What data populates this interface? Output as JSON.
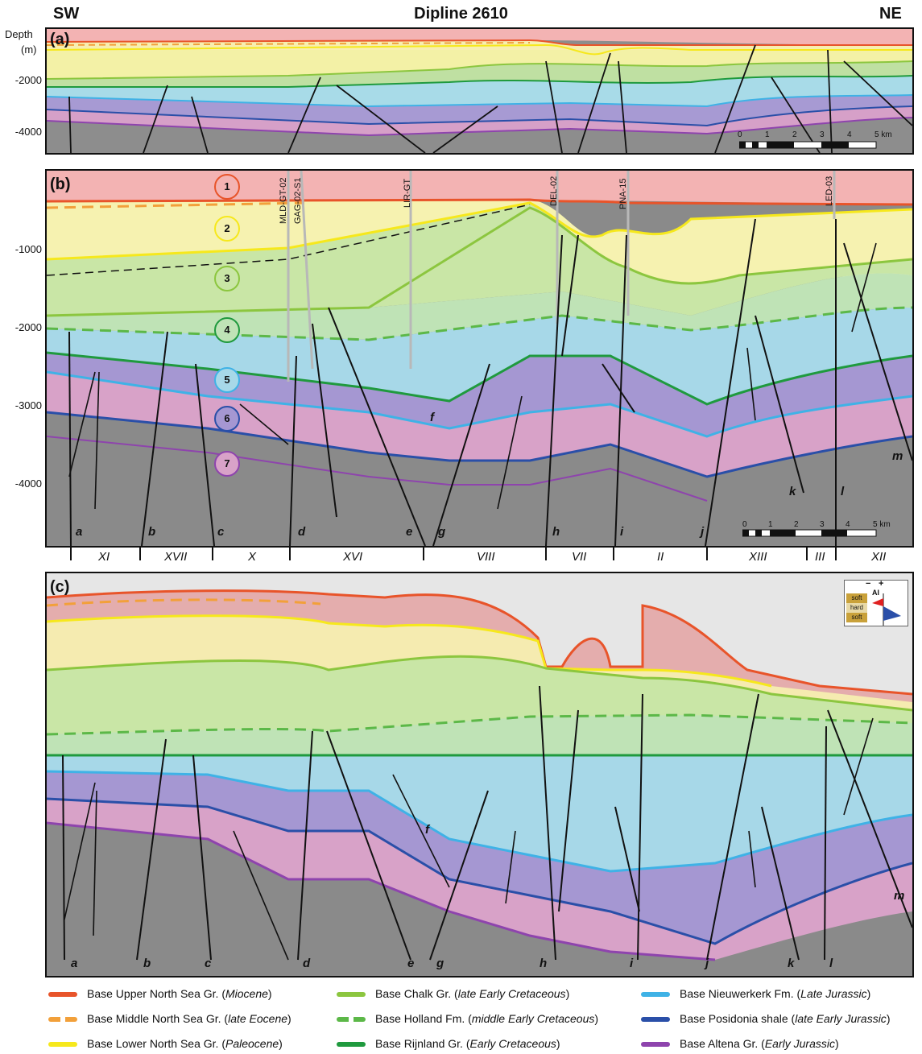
{
  "title": "Dipline 2610",
  "left_label": "SW",
  "right_label": "NE",
  "depth_label": "Depth",
  "depth_unit": "(m)",
  "panels": {
    "a": {
      "label": "(a)",
      "ticks": [
        "-2000",
        "-4000"
      ]
    },
    "b": {
      "label": "(b)",
      "ticks": [
        "-1000",
        "-2000",
        "-3000",
        "-4000"
      ]
    },
    "c": {
      "label": "(c)"
    }
  },
  "scale_ticks": [
    "0",
    "1",
    "2",
    "3",
    "4",
    "5 km"
  ],
  "scale_ticks_b": [
    "0",
    "1",
    "2",
    "3",
    "4",
    "5 km"
  ],
  "units": [
    "1",
    "2",
    "3",
    "4",
    "5",
    "6",
    "7"
  ],
  "wells": [
    "MLD-GT-02",
    "GAG-02-S1",
    "LIR-GT",
    "DEL-02",
    "PNA-15",
    "LED-03"
  ],
  "faults_b": [
    "a",
    "b",
    "c",
    "d",
    "e",
    "f",
    "g",
    "h",
    "i",
    "j",
    "k",
    "l",
    "m"
  ],
  "faults_c": [
    "a",
    "b",
    "c",
    "d",
    "e",
    "f",
    "g",
    "h",
    "i",
    "j",
    "k",
    "l",
    "m"
  ],
  "blocks": [
    "XI",
    "XVII",
    "X",
    "XVI",
    "VIII",
    "VII",
    "II",
    "XIII",
    "III",
    "XII"
  ],
  "ai_key": {
    "title": "AI",
    "minus": "−",
    "plus": "+",
    "rows": [
      "soft",
      "hard",
      "soft"
    ]
  },
  "legend": [
    {
      "name": "Base Upper North Sea Gr.",
      "age": "Miocene",
      "color": "#e8542a",
      "style": "solid"
    },
    {
      "name": "Base Middle North Sea Gr.",
      "age": "late Eocene",
      "color": "#f2a03a",
      "style": "dashed"
    },
    {
      "name": "Base Lower North Sea Gr.",
      "age": "Paleocene",
      "color": "#f6e81c",
      "style": "solid"
    },
    {
      "name": "Base Chalk Gr.",
      "age": "late Early Cretaceous",
      "color": "#8cc63f",
      "style": "solid"
    },
    {
      "name": "Base Holland Fm.",
      "age": "middle Early Cretaceous",
      "color": "#5cb848",
      "style": "dashed"
    },
    {
      "name": "Base Rijnland Gr.",
      "age": "Early Cretaceous",
      "color": "#1f9a3e",
      "style": "solid"
    },
    {
      "name": "Base Nieuwerkerk Fm.",
      "age": "Late Jurassic",
      "color": "#3fb2e6",
      "style": "solid"
    },
    {
      "name": "Base Posidonia shale",
      "age": "late Early Jurassic",
      "color": "#2a4fa8",
      "style": "solid"
    },
    {
      "name": "Base Altena Gr.",
      "age": "Early Jurassic",
      "color": "#8e44ad",
      "style": "solid"
    }
  ],
  "unit_colors": [
    "#e8542a",
    "#f6e81c",
    "#8cc63f",
    "#1f9a3e",
    "#3fb2e6",
    "#2a4fa8",
    "#8e44ad"
  ]
}
